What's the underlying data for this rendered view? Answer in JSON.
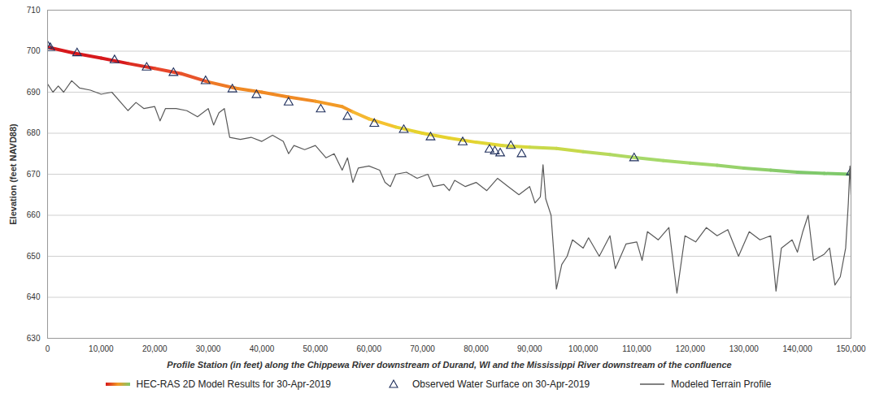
{
  "chart_data": {
    "type": "line",
    "xlabel": "Profile Station (in feet) along the Chippewa River downstream of Durand, WI and the Mississippi River downstream of the confluence",
    "ylabel": "Elevation (feet NAVD88)",
    "xlim": [
      0,
      150000
    ],
    "ylim": [
      630,
      710
    ],
    "xticks": [
      0,
      {
        "value": 10000,
        "label": "10,000"
      },
      {
        "value": 20000,
        "label": "20,000"
      },
      {
        "value": 30000,
        "label": "30,000"
      },
      {
        "value": 40000,
        "label": "40,000"
      },
      {
        "value": 50000,
        "label": "50,000"
      },
      {
        "value": 60000,
        "label": "60,000"
      },
      {
        "value": 70000,
        "label": "70,000"
      },
      {
        "value": 80000,
        "label": "80,000"
      },
      {
        "value": 90000,
        "label": "90,000"
      },
      {
        "value": 100000,
        "label": "100,000"
      },
      {
        "value": 110000,
        "label": "110,000"
      },
      {
        "value": 120000,
        "label": "120,000"
      },
      {
        "value": 130000,
        "label": "130,000"
      },
      {
        "value": 140000,
        "label": "140,000"
      },
      {
        "value": 150000,
        "label": "150,000"
      }
    ],
    "yticks": [
      630,
      640,
      650,
      660,
      670,
      680,
      690,
      700,
      710
    ],
    "grid": true,
    "legend": "bottom",
    "series": [
      {
        "name": "HEC-RAS 2D Model Results for 30-Apr-2019",
        "type": "line",
        "x": [
          0,
          5000,
          10000,
          15000,
          20000,
          25000,
          30000,
          35000,
          40000,
          45000,
          50000,
          55000,
          57000,
          60000,
          65000,
          70000,
          75000,
          80000,
          85000,
          90000,
          95000,
          100000,
          105000,
          110000,
          115000,
          120000,
          125000,
          130000,
          135000,
          140000,
          145000,
          150000
        ],
        "values": [
          701,
          699.5,
          698.3,
          697,
          695.8,
          694.5,
          692.5,
          691,
          690,
          688.8,
          687.8,
          686.5,
          685.2,
          683.5,
          681.5,
          680,
          678.8,
          677.8,
          677,
          676.6,
          676.3,
          675.5,
          674.8,
          674,
          673.3,
          672.7,
          672.2,
          671.5,
          671,
          670.5,
          670.2,
          670
        ],
        "colors": [
          "#d7191c",
          "#d7191c",
          "#d7191c",
          "#dc2f22",
          "#e8462a",
          "#e8542a",
          "#ee7a26",
          "#f08a24",
          "#f08a24",
          "#f08a24",
          "#f29a26",
          "#f29a26",
          "#f5b731",
          "#f5c22f",
          "#e6d22e",
          "#e6d22e",
          "#e6d22e",
          "#e0d636",
          "#d8d83c",
          "#c8d94a",
          "#c8d94a",
          "#b9d95a",
          "#b0d963",
          "#a6d96a",
          "#a6d96a",
          "#a0d66a",
          "#98d26b",
          "#90cf6b",
          "#88cb6b",
          "#7fc96b",
          "#7fc96b",
          "#7fc96b"
        ]
      },
      {
        "name": "Observed Water Surface on 30-Apr-2019",
        "type": "scatter",
        "marker": "triangle",
        "color": "#1f2f5c",
        "x": [
          0,
          500,
          5500,
          12500,
          18500,
          23500,
          29500,
          34500,
          39000,
          45000,
          51000,
          56000,
          61000,
          66500,
          71500,
          77500,
          82500,
          83500,
          84500,
          86500,
          88500,
          109500,
          150000
        ],
        "values": [
          701.3,
          700.8,
          699.5,
          697.8,
          696,
          694.7,
          692.7,
          690.7,
          689.3,
          687.5,
          685.8,
          684,
          682.3,
          680.8,
          679,
          677.8,
          676,
          675.6,
          675.1,
          676.9,
          674.9,
          673.9,
          670.5
        ]
      },
      {
        "name": "Modeled Terrain Profile",
        "type": "line",
        "color": "#595959",
        "x": [
          0,
          1000,
          2000,
          3000,
          4500,
          6000,
          8000,
          10000,
          12000,
          14000,
          15000,
          16500,
          18000,
          20000,
          21000,
          22000,
          24000,
          26000,
          28000,
          30000,
          31000,
          32000,
          33000,
          34000,
          36000,
          38000,
          40000,
          42000,
          44000,
          45000,
          46000,
          48000,
          50000,
          52000,
          53500,
          55000,
          56000,
          57000,
          58000,
          60000,
          62000,
          63000,
          64000,
          65000,
          67000,
          69000,
          71000,
          72000,
          74000,
          75000,
          76000,
          78000,
          80000,
          82000,
          84000,
          86000,
          88000,
          90000,
          91000,
          92000,
          92500,
          93000,
          94000,
          95000,
          96000,
          97000,
          98000,
          100000,
          101000,
          103000,
          105000,
          106000,
          108000,
          110000,
          111000,
          112000,
          114000,
          116000,
          117500,
          119000,
          121000,
          123000,
          125000,
          127000,
          129000,
          131000,
          133000,
          135000,
          136000,
          137000,
          139000,
          140000,
          141000,
          142000,
          143000,
          145000,
          146000,
          147000,
          148000,
          149000,
          149500,
          149800,
          150000
        ],
        "values": [
          692,
          690,
          691.5,
          690,
          692.8,
          691,
          690.5,
          689.5,
          690,
          687,
          685.5,
          687.5,
          686,
          686.5,
          683,
          686,
          686,
          685.5,
          684,
          686,
          682,
          685,
          686,
          679,
          678.5,
          679,
          678,
          679.5,
          678,
          675,
          677,
          676,
          677,
          674,
          675,
          671,
          674,
          668,
          671.5,
          672,
          671,
          668,
          667,
          670,
          670.5,
          669,
          670,
          667,
          667.5,
          666,
          668.5,
          667,
          668,
          666,
          669,
          667,
          665,
          667,
          663,
          664.5,
          672.3,
          664,
          660,
          642,
          648,
          650,
          654,
          652,
          654.5,
          650,
          655,
          647,
          653,
          653.5,
          649,
          656,
          654,
          657,
          641,
          655,
          653.5,
          657,
          655,
          656.5,
          650,
          656,
          654,
          655,
          641.5,
          652,
          654,
          651,
          656,
          660,
          649,
          650.5,
          652,
          643,
          645,
          652,
          663,
          672,
          665
        ]
      }
    ]
  }
}
